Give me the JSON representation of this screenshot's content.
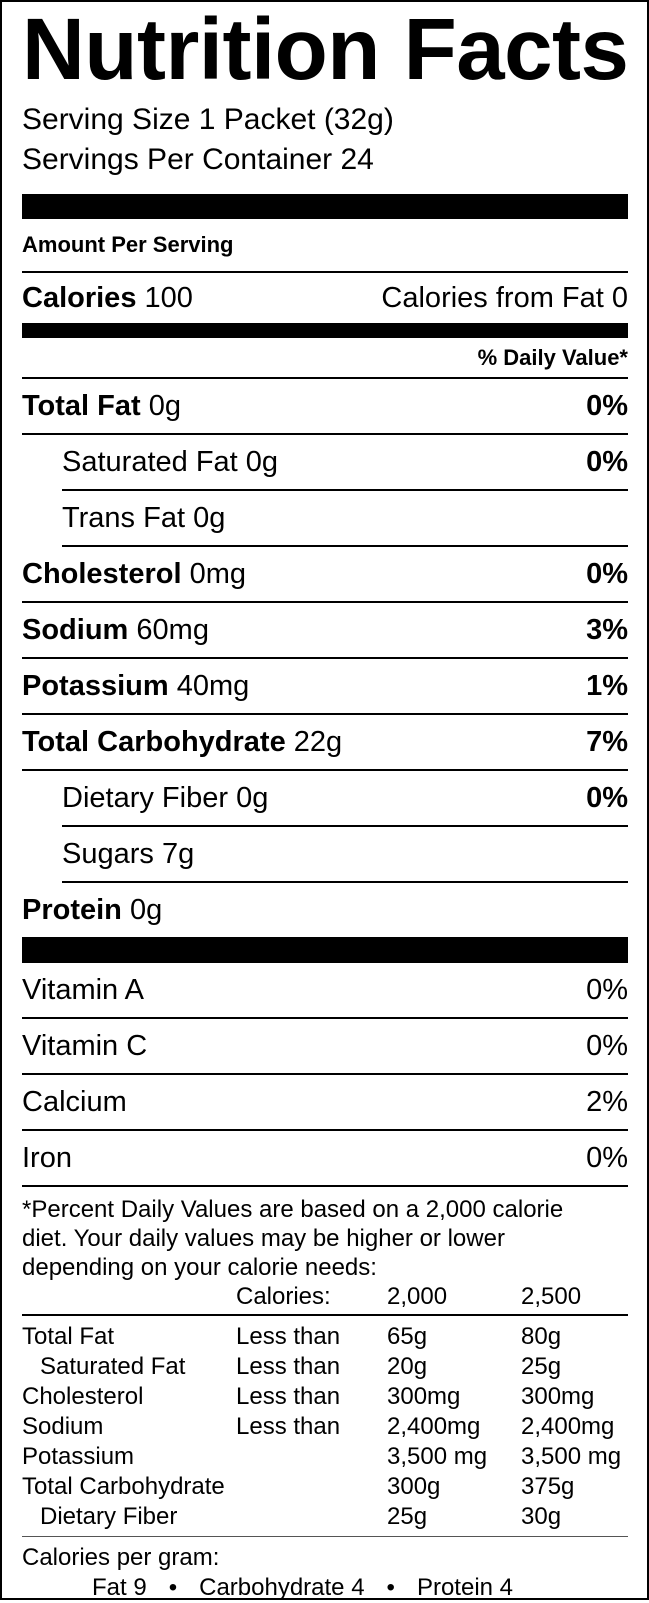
{
  "title": "Nutrition Facts",
  "serving_size": "Serving Size 1 Packet (32g)",
  "servings_per_container": "Servings Per Container 24",
  "amount_per_serving": "Amount Per Serving",
  "calories": {
    "label": "Calories",
    "value": "100",
    "from_fat": "Calories from Fat 0"
  },
  "daily_value_header": "% Daily Value*",
  "nutrients": [
    {
      "name": "Total Fat",
      "amount": "0g",
      "dv": "0%"
    },
    {
      "name": "Saturated Fat",
      "amount": "0g",
      "dv": "0%"
    },
    {
      "name": "Trans Fat",
      "amount": "0g",
      "dv": ""
    },
    {
      "name": "Cholesterol",
      "amount": "0mg",
      "dv": "0%"
    },
    {
      "name": "Sodium",
      "amount": "60mg",
      "dv": "3%"
    },
    {
      "name": "Potassium",
      "amount": "40mg",
      "dv": "1%"
    },
    {
      "name": "Total Carbohydrate",
      "amount": "22g",
      "dv": "7%"
    },
    {
      "name": "Dietary Fiber",
      "amount": "0g",
      "dv": "0%"
    },
    {
      "name": "Sugars",
      "amount": "7g",
      "dv": ""
    },
    {
      "name": "Protein",
      "amount": "0g",
      "dv": ""
    }
  ],
  "vitamins": [
    {
      "name": "Vitamin A",
      "dv": "0%"
    },
    {
      "name": "Vitamin C",
      "dv": "0%"
    },
    {
      "name": "Calcium",
      "dv": "2%"
    },
    {
      "name": "Iron",
      "dv": "0%"
    }
  ],
  "footnote": [
    "*Percent Daily Values are based on a 2,000 calorie",
    "diet. Your daily values may be higher or lower",
    "depending on your calorie needs:"
  ],
  "reference_table": {
    "header": [
      "",
      "Calories:",
      "2,000",
      "2,500"
    ],
    "rows": [
      [
        "Total Fat",
        "Less than",
        "65g",
        "80g"
      ],
      [
        "Saturated Fat",
        "Less than",
        "20g",
        "25g"
      ],
      [
        "Cholesterol",
        "Less than",
        "300mg",
        "300mg"
      ],
      [
        "Sodium",
        "Less than",
        "2,400mg",
        "2,400mg"
      ],
      [
        "Potassium",
        "",
        "3,500 mg",
        "3,500 mg"
      ],
      [
        "Total Carbohydrate",
        "",
        "300g",
        "375g"
      ],
      [
        "Dietary Fiber",
        "",
        "25g",
        "30g"
      ]
    ]
  },
  "calories_per_gram": {
    "label": "Calories per gram:",
    "fat": "Fat 9",
    "carbohydrate": "Carbohydrate 4",
    "protein": "Protein 4",
    "separator": "•"
  }
}
